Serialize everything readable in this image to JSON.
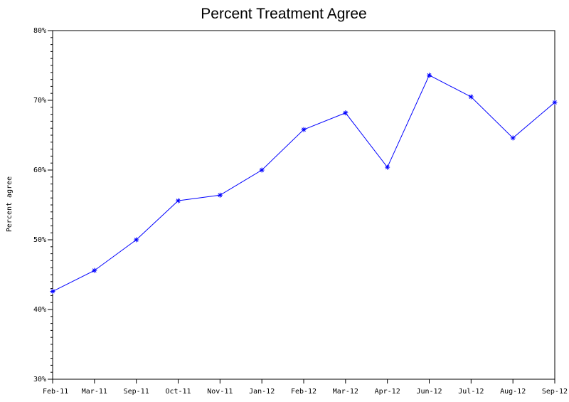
{
  "chart_data": {
    "type": "line",
    "title": "Percent Treatment Agree",
    "ylabel": "Percent agree",
    "xlabel": "",
    "categories": [
      "Feb-11",
      "Mar-11",
      "Sep-11",
      "Oct-11",
      "Nov-11",
      "Jan-12",
      "Feb-12",
      "Mar-12",
      "Apr-12",
      "Jun-12",
      "Jul-12",
      "Aug-12",
      "Sep-12"
    ],
    "series": [
      {
        "values": [
          42.6,
          45.6,
          50.0,
          55.6,
          56.4,
          60.0,
          65.8,
          68.2,
          60.4,
          73.6,
          70.5,
          64.6,
          69.7
        ]
      }
    ],
    "ylim": [
      30,
      80
    ],
    "yticks": [
      30,
      40,
      50,
      60,
      70,
      80
    ],
    "ytick_labels": [
      "30%",
      "40%",
      "50%",
      "60%",
      "70%",
      "80%"
    ],
    "marker": "star",
    "line_color": "#0000ff",
    "grid": false,
    "legend": "none"
  }
}
